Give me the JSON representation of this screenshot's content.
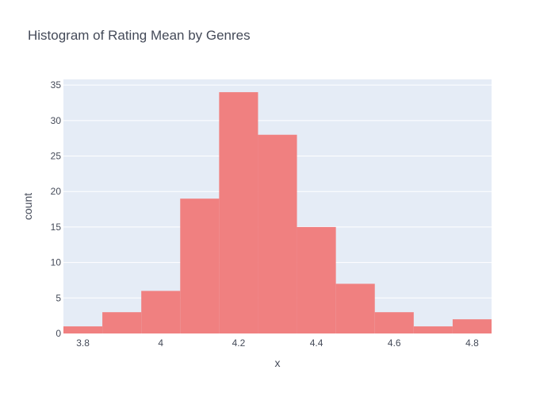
{
  "chart_data": {
    "type": "bar",
    "title": "Histogram of Rating Mean by Genres",
    "xlabel": "x",
    "ylabel": "count",
    "bins": [
      {
        "start": 3.75,
        "end": 3.85,
        "count": 1
      },
      {
        "start": 3.85,
        "end": 3.95,
        "count": 3
      },
      {
        "start": 3.95,
        "end": 4.05,
        "count": 6
      },
      {
        "start": 4.05,
        "end": 4.15,
        "count": 19
      },
      {
        "start": 4.15,
        "end": 4.25,
        "count": 34
      },
      {
        "start": 4.25,
        "end": 4.35,
        "count": 28
      },
      {
        "start": 4.35,
        "end": 4.45,
        "count": 15
      },
      {
        "start": 4.45,
        "end": 4.55,
        "count": 7
      },
      {
        "start": 4.55,
        "end": 4.65,
        "count": 3
      },
      {
        "start": 4.65,
        "end": 4.75,
        "count": 1
      },
      {
        "start": 4.75,
        "end": 4.85,
        "count": 2
      }
    ],
    "xlim": [
      3.75,
      4.85
    ],
    "ylim": [
      0,
      35.8
    ],
    "xticks": [
      3.8,
      4,
      4.2,
      4.4,
      4.6,
      4.8
    ],
    "xtick_labels": [
      "3.8",
      "4",
      "4.2",
      "4.4",
      "4.6",
      "4.8"
    ],
    "yticks": [
      0,
      5,
      10,
      15,
      20,
      25,
      30,
      35
    ],
    "ytick_labels": [
      "0",
      "5",
      "10",
      "15",
      "20",
      "25",
      "30",
      "35"
    ],
    "grid": true,
    "colors": {
      "bar": "#f08080",
      "plot_background": "#e5ecf6",
      "grid": "#ffffff",
      "text": "#444a58"
    }
  }
}
